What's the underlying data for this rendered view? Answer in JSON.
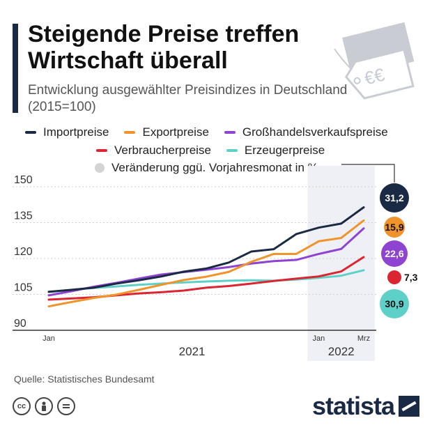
{
  "header": {
    "title": "Steigende Preise treffen Wirtschaft überall",
    "subtitle": "Entwicklung ausgewählter Preisindizes in Deutschland (2015=100)"
  },
  "legend": {
    "change_note": "Veränderung ggü. Vorjahresmonat in %"
  },
  "chart_data": {
    "type": "line",
    "title": "Steigende Preise treffen Wirtschaft überall",
    "subtitle": "Entwicklung ausgewählter Preisindizes in Deutschland (2015=100)",
    "x": [
      "2021-01",
      "2021-02",
      "2021-03",
      "2021-04",
      "2021-05",
      "2021-06",
      "2021-07",
      "2021-08",
      "2021-09",
      "2021-10",
      "2021-11",
      "2021-12",
      "2022-01",
      "2022-02",
      "2022-03"
    ],
    "x_tick_labels": [
      {
        "x": "2021-01",
        "label": "Jan"
      },
      {
        "x": "2022-01",
        "label": "Jan"
      },
      {
        "x": "2022-03",
        "label": "Mrz"
      }
    ],
    "year_labels": [
      {
        "label": "2021"
      },
      {
        "label": "2022"
      }
    ],
    "ylim": [
      90,
      150
    ],
    "yticks": [
      90,
      105,
      120,
      135,
      150
    ],
    "grid": true,
    "highlight_range": [
      "2022-01",
      "2022-03"
    ],
    "series": [
      {
        "name": "Importpreise",
        "color": "#1b2a44",
        "values": [
          106.1,
          106.9,
          107.8,
          109.5,
          110.9,
          112.5,
          114.5,
          115.8,
          118.3,
          122.9,
          123.9,
          130.2,
          132.9,
          134.6,
          141.4
        ],
        "change": "31,2"
      },
      {
        "name": "Exportpreise",
        "color": "#f0932b",
        "values": [
          100.0,
          101.8,
          103.5,
          104.9,
          106.9,
          109.0,
          111.0,
          112.4,
          114.4,
          118.6,
          121.9,
          121.9,
          127.2,
          128.6,
          135.9
        ],
        "change": "15,9"
      },
      {
        "name": "Großhandelsverkaufspreise",
        "color": "#8e44d1",
        "values": [
          104.6,
          106.3,
          108.2,
          109.8,
          111.6,
          113.3,
          114.3,
          115.3,
          116.4,
          117.9,
          118.9,
          119.4,
          121.9,
          124.0,
          132.6
        ],
        "change": "22,6"
      },
      {
        "name": "Verbraucherpreise",
        "color": "#d92630",
        "values": [
          102.8,
          103.3,
          103.8,
          104.6,
          105.4,
          105.9,
          106.6,
          107.8,
          108.5,
          109.5,
          110.6,
          111.6,
          112.5,
          114.6,
          120.6
        ],
        "change": "7,3"
      },
      {
        "name": "Erzeugerpreise",
        "color": "#5fd0c8",
        "values": [
          106.0,
          106.9,
          107.7,
          108.3,
          109.0,
          109.5,
          110.0,
          110.4,
          110.7,
          110.9,
          110.7,
          111.2,
          111.9,
          112.8,
          115.1
        ],
        "change": "30,9"
      }
    ]
  },
  "footer": {
    "source": "Quelle: Statistisches Bundesamt",
    "brand": "statista",
    "license_icons": [
      "cc-icon",
      "by-icon",
      "nd-icon"
    ]
  },
  "decoration": {
    "tag_text": "€€"
  }
}
